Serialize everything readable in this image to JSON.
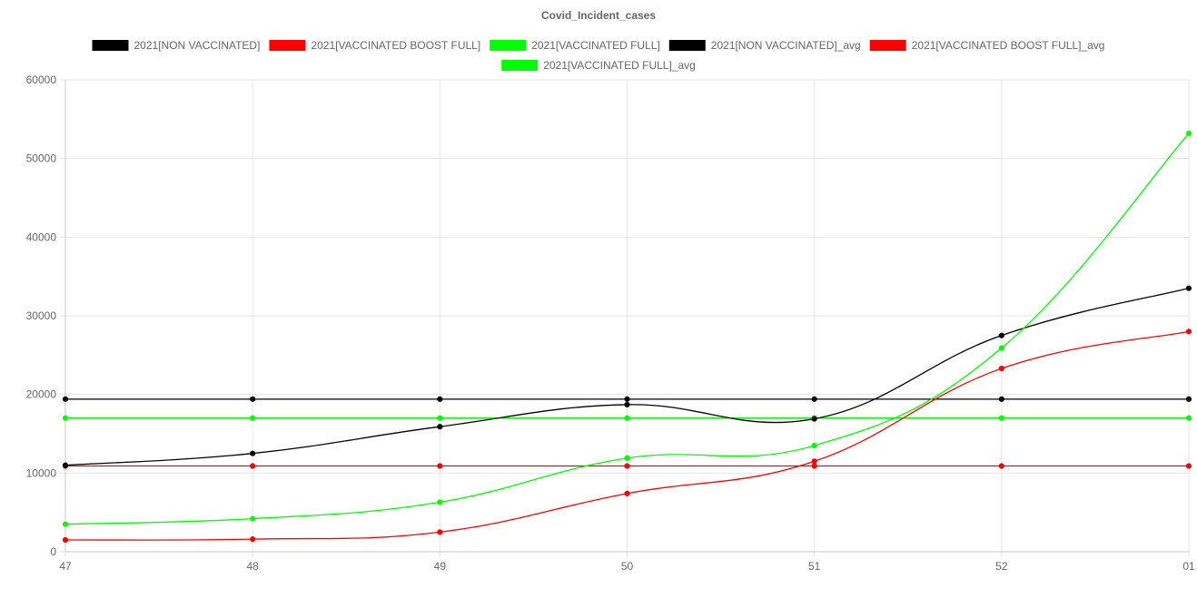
{
  "chart_data": {
    "type": "line",
    "title": "Covid_Incident_cases",
    "xlabel": "",
    "ylabel": "",
    "categories": [
      "47",
      "48",
      "49",
      "50",
      "51",
      "52",
      "01"
    ],
    "ylim": [
      0,
      60000
    ],
    "yticks": [
      0,
      10000,
      20000,
      30000,
      40000,
      50000,
      60000
    ],
    "grid": true,
    "legend_position": "top",
    "series": [
      {
        "name": "2021[NON VACCINATED]",
        "color": "#000000",
        "values": [
          11000,
          12500,
          15900,
          18700,
          16900,
          27500,
          33500
        ]
      },
      {
        "name": "2021[VACCINATED BOOST FULL]",
        "color": "#ff0000",
        "values": [
          1500,
          1600,
          2500,
          7400,
          11500,
          23300,
          28000
        ]
      },
      {
        "name": "2021[VACCINATED FULL]",
        "color": "#00ff00",
        "values": [
          3500,
          4200,
          6300,
          11900,
          13500,
          25900,
          53200
        ]
      },
      {
        "name": "2021[NON VACCINATED]_avg",
        "color": "#000000",
        "values": [
          19400,
          19400,
          19400,
          19400,
          19400,
          19400,
          19400
        ]
      },
      {
        "name": "2021[VACCINATED BOOST FULL]_avg",
        "color": "#ff0000",
        "values": [
          10900,
          10900,
          10900,
          10900,
          10900,
          10900,
          10900
        ]
      },
      {
        "name": "2021[VACCINATED FULL]_avg",
        "color": "#00ff00",
        "values": [
          17000,
          17000,
          17000,
          17000,
          17000,
          17000,
          17000
        ]
      }
    ]
  }
}
